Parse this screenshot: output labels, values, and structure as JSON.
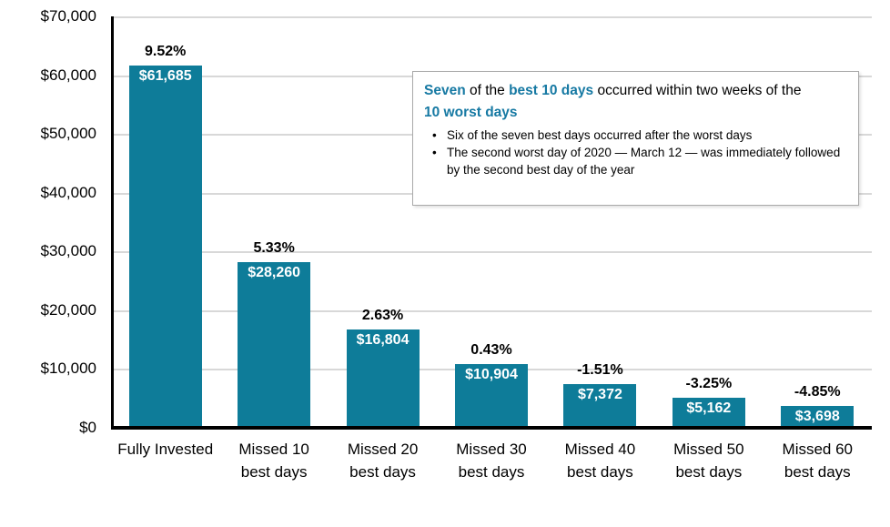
{
  "chart_data": {
    "type": "bar",
    "title": "",
    "categories": [
      "Fully Invested",
      "Missed 10\nbest days",
      "Missed 20\nbest days",
      "Missed 30\nbest days",
      "Missed 40\nbest days",
      "Missed 50\nbest days",
      "Missed 60\nbest days"
    ],
    "values": [
      61685,
      28260,
      16804,
      10904,
      7372,
      5162,
      3698
    ],
    "value_labels": [
      "$61,685",
      "$28,260",
      "$16,804",
      "$10,904",
      "$7,372",
      "$5,162",
      "$3,698"
    ],
    "return_labels": [
      "9.52%",
      "5.33%",
      "2.63%",
      "0.43%",
      "-1.51%",
      "-3.25%",
      "-4.85%"
    ],
    "y_ticks": [
      "$70,000",
      "$60,000",
      "$50,000",
      "$40,000",
      "$30,000",
      "$20,000",
      "$10,000",
      "$0"
    ],
    "ylim": [
      0,
      70000
    ],
    "grid": true,
    "legend": "none"
  },
  "annotation": {
    "heading_lines": [
      {
        "segments": [
          {
            "t": "Seven",
            "accent": true
          },
          {
            "t": " of the ",
            "accent": false
          },
          {
            "t": "best 10 days",
            "accent": true
          },
          {
            "t": " occurred within two weeks of the",
            "accent": false
          }
        ]
      },
      {
        "segments": [
          {
            "t": "10 worst days",
            "accent": true
          }
        ]
      }
    ],
    "bullet_glyph": "•",
    "bullets": [
      "Six of the seven best days occurred after the worst days",
      "The second worst day of 2020 — March 12 — was immediately followed by the second best day of the year"
    ]
  },
  "colors": {
    "bar": "#0E7C99",
    "accent_text": "#1679A3",
    "gridline": "#D8D8D8",
    "axis": "#000000",
    "box_border": "#A9A9A9",
    "bar_value_text": "#FFFFFF",
    "text": "#000000"
  }
}
